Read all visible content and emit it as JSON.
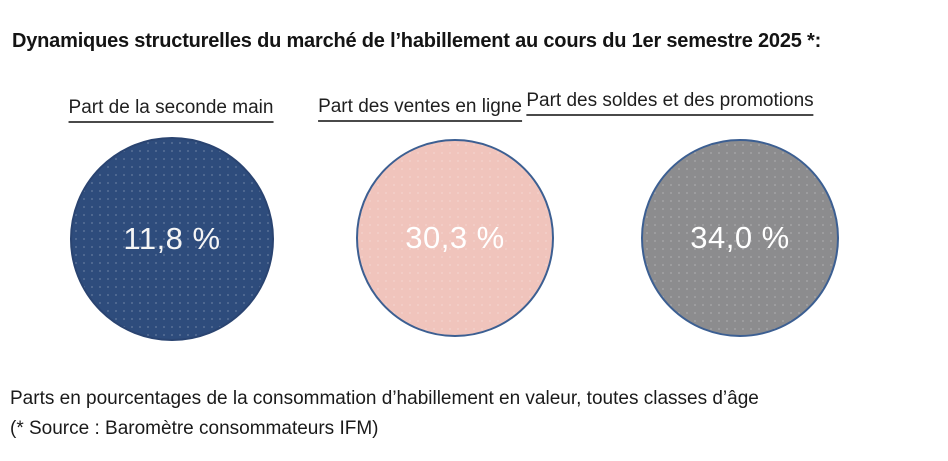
{
  "title": "Dynamiques structurelles du marché de l’habillement au cours du 1er semestre 2025 *:",
  "circles": [
    {
      "label": "Part de la seconde main",
      "value": 11.8,
      "value_label": "11,8 %",
      "fill": "#2e4c7c",
      "border": "#2a4471",
      "text_color": "#f5f5f5"
    },
    {
      "label": "Part des ventes en ligne",
      "value": 30.3,
      "value_label": "30,3 %",
      "fill": "#f0c4bc",
      "border": "#3c5f92",
      "text_color": "#ffffff"
    },
    {
      "label": "Part des soldes et des promotions",
      "value": 34.0,
      "value_label": "34,0 %",
      "fill": "#8c8c8e",
      "border": "#3c5f92",
      "text_color": "#ffffff"
    }
  ],
  "footnote_line1": "Parts en pourcentages de la consommation d’habillement en valeur, toutes classes d’âge",
  "footnote_line2": "(* Source : Baromètre consommateurs IFM)",
  "chart_data": {
    "type": "bubble",
    "title": "Dynamiques structurelles du marché de l’habillement au cours du 1er semestre 2025 *:",
    "categories": [
      "Part de la seconde main",
      "Part des ventes en ligne",
      "Part des soldes et des promotions"
    ],
    "values": [
      11.8,
      30.3,
      34.0
    ],
    "value_labels": [
      "11,8 %",
      "30,3 %",
      "34,0 %"
    ],
    "unit": "% de la consommation d’habillement en valeur",
    "colors": [
      "#2e4c7c",
      "#f0c4bc",
      "#8c8c8e"
    ],
    "note": "Parts en pourcentages de la consommation d’habillement en valeur, toutes classes d’âge",
    "source": "(* Source : Baromètre consommateurs IFM)",
    "legend_position": "none",
    "grid": false
  }
}
